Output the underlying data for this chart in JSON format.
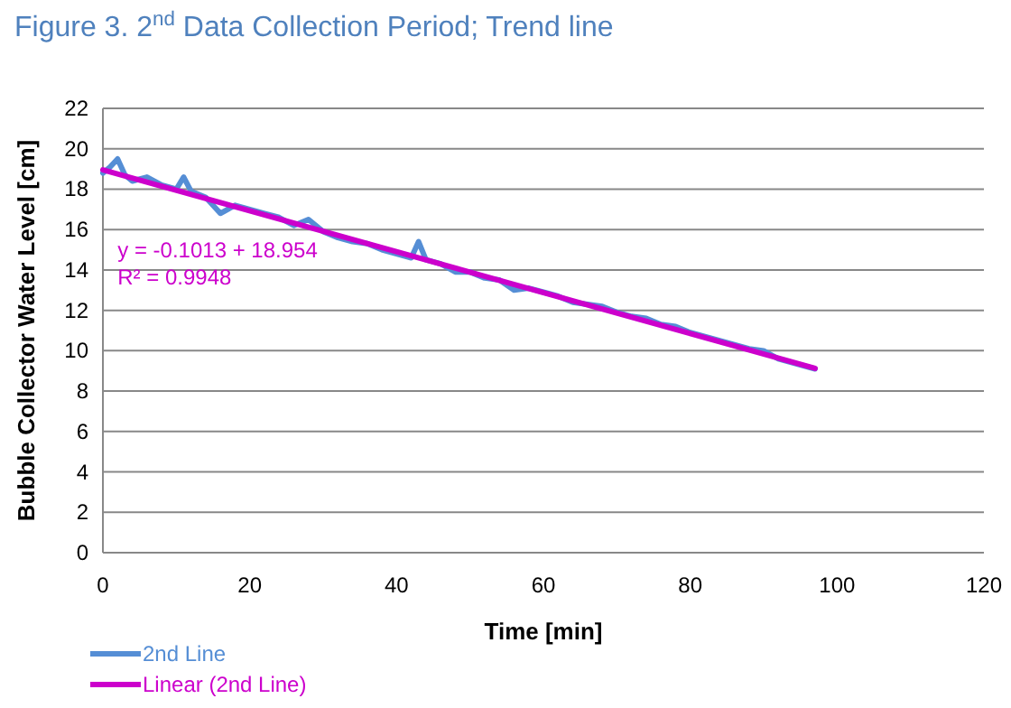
{
  "chart_data": {
    "type": "line",
    "title": "Figure 3. 2$^{nd}$ Data Collection Period; Trend line",
    "xlabel": "Time [min]",
    "ylabel": "Bubble Collector Water Level [cm]",
    "xlim": [
      0,
      120
    ],
    "xticks": [
      0,
      20,
      40,
      60,
      80,
      100,
      120
    ],
    "ylim": [
      0,
      22
    ],
    "yticks": [
      0,
      2,
      4,
      6,
      8,
      10,
      12,
      14,
      16,
      18,
      20,
      22
    ],
    "grid": "y",
    "legend": "bottom left",
    "marker": "none",
    "annotations": [
      "y = -0.1013 + 18.954",
      "R² = 0.9948"
    ],
    "series": [
      {
        "name": "2nd Line",
        "color": "#558ed5",
        "x": [
          0,
          1,
          2,
          3,
          4,
          6,
          8,
          10,
          11,
          12,
          14,
          16,
          18,
          20,
          22,
          24,
          26,
          28,
          30,
          32,
          34,
          36,
          38,
          40,
          42,
          43,
          44,
          46,
          48,
          50,
          52,
          54,
          56,
          58,
          60,
          62,
          64,
          66,
          68,
          70,
          72,
          74,
          76,
          78,
          80,
          82,
          84,
          86,
          88,
          90,
          92,
          94,
          96,
          97
        ],
        "values": [
          18.8,
          19.1,
          19.5,
          18.7,
          18.4,
          18.6,
          18.2,
          18.0,
          18.6,
          17.9,
          17.6,
          16.8,
          17.2,
          17.0,
          16.8,
          16.6,
          16.2,
          16.5,
          15.9,
          15.6,
          15.4,
          15.3,
          15.0,
          14.8,
          14.6,
          15.4,
          14.5,
          14.3,
          13.9,
          13.9,
          13.6,
          13.5,
          13.0,
          13.1,
          12.9,
          12.7,
          12.4,
          12.3,
          12.2,
          11.9,
          11.7,
          11.6,
          11.3,
          11.2,
          10.9,
          10.7,
          10.5,
          10.3,
          10.1,
          10.0,
          9.6,
          9.4,
          9.2,
          9.1
        ]
      },
      {
        "name": "Linear (2nd Line)",
        "color": "#cc00cc",
        "x": [
          0,
          97
        ],
        "values": [
          18.954,
          9.128
        ]
      }
    ]
  }
}
